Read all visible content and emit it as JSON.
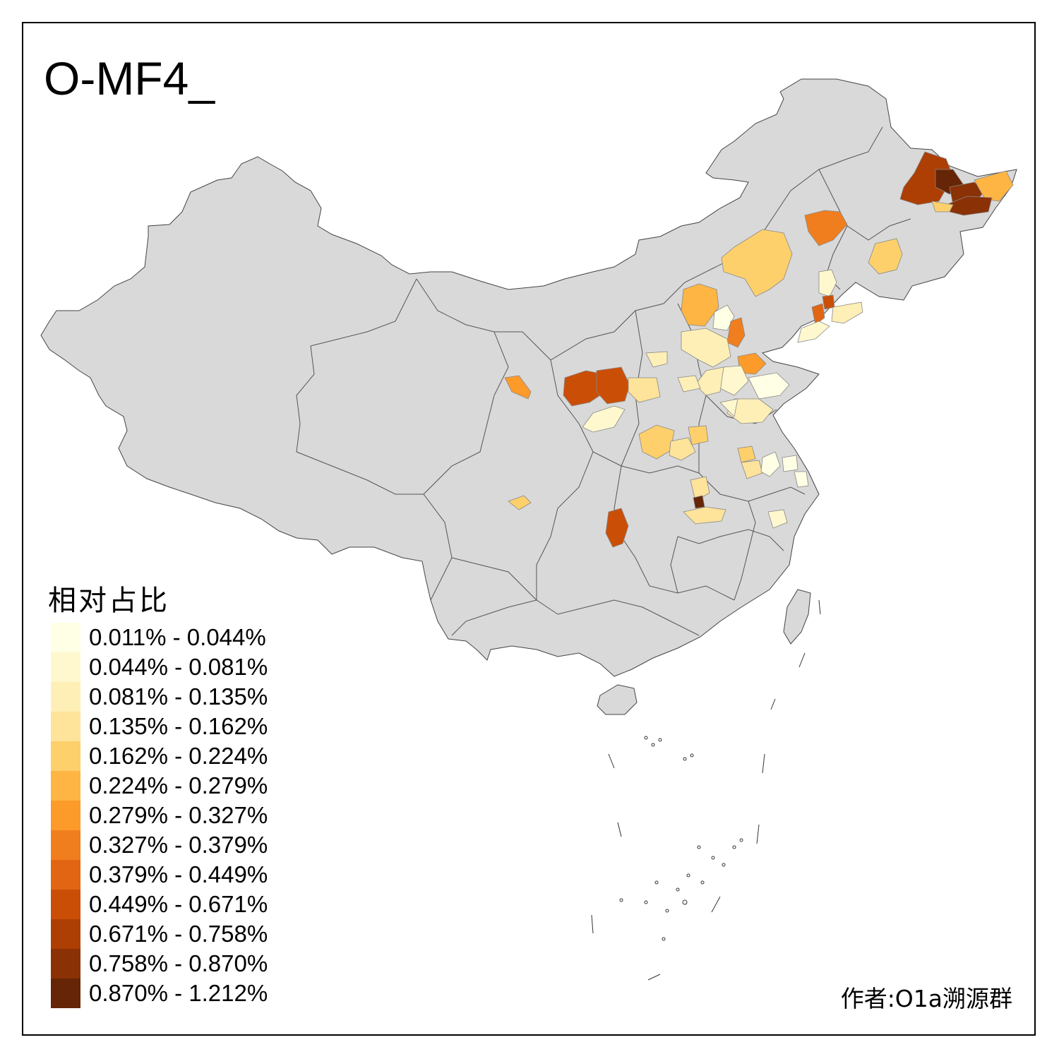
{
  "title": "O-MF4_",
  "legend": {
    "title": "相对占比",
    "items": [
      {
        "label": "0.011% - 0.044%",
        "color": "#FFFFE5"
      },
      {
        "label": "0.044% - 0.081%",
        "color": "#FFF8CF"
      },
      {
        "label": "0.081% - 0.135%",
        "color": "#FEEFB6"
      },
      {
        "label": "0.135% - 0.162%",
        "color": "#FEE39A"
      },
      {
        "label": "0.162% - 0.224%",
        "color": "#FED06B"
      },
      {
        "label": "0.224% - 0.279%",
        "color": "#FEB544"
      },
      {
        "label": "0.279% - 0.327%",
        "color": "#FC9A2A"
      },
      {
        "label": "0.327% - 0.379%",
        "color": "#F07E1E"
      },
      {
        "label": "0.379% - 0.449%",
        "color": "#E16513"
      },
      {
        "label": "0.449% - 0.671%",
        "color": "#CB4E06"
      },
      {
        "label": "0.671% - 0.758%",
        "color": "#AD3E04"
      },
      {
        "label": "0.758% - 0.870%",
        "color": "#8A3105"
      },
      {
        "label": "0.870% - 1.212%",
        "color": "#662506"
      }
    ]
  },
  "author": "作者:O1a溯源群",
  "colors": {
    "base_region": "#D9D9D9",
    "border": "#555555",
    "frame": "#000000"
  }
}
